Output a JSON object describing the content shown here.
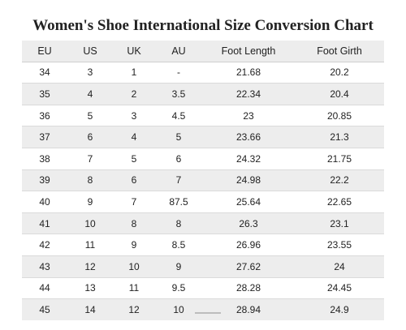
{
  "title": "Women's Shoe International Size Conversion Chart",
  "table": {
    "headers": [
      "EU",
      "US",
      "UK",
      "AU",
      "Foot Length",
      "Foot Girth"
    ],
    "rows": [
      [
        "34",
        "3",
        "1",
        "-",
        "21.68",
        "20.2"
      ],
      [
        "35",
        "4",
        "2",
        "3.5",
        "22.34",
        "20.4"
      ],
      [
        "36",
        "5",
        "3",
        "4.5",
        "23",
        "20.85"
      ],
      [
        "37",
        "6",
        "4",
        "5",
        "23.66",
        "21.3"
      ],
      [
        "38",
        "7",
        "5",
        "6",
        "24.32",
        "21.75"
      ],
      [
        "39",
        "8",
        "6",
        "7",
        "24.98",
        "22.2"
      ],
      [
        "40",
        "9",
        "7",
        "87.5",
        "25.64",
        "22.65"
      ],
      [
        "41",
        "10",
        "8",
        "8",
        "26.3",
        "23.1"
      ],
      [
        "42",
        "11",
        "9",
        "8.5",
        "26.96",
        "23.55"
      ],
      [
        "43",
        "12",
        "10",
        "9",
        "27.62",
        "24"
      ],
      [
        "44",
        "13",
        "11",
        "9.5",
        "28.28",
        "24.45"
      ],
      [
        "45",
        "14",
        "12",
        "10",
        "28.94",
        "24.9"
      ]
    ]
  }
}
